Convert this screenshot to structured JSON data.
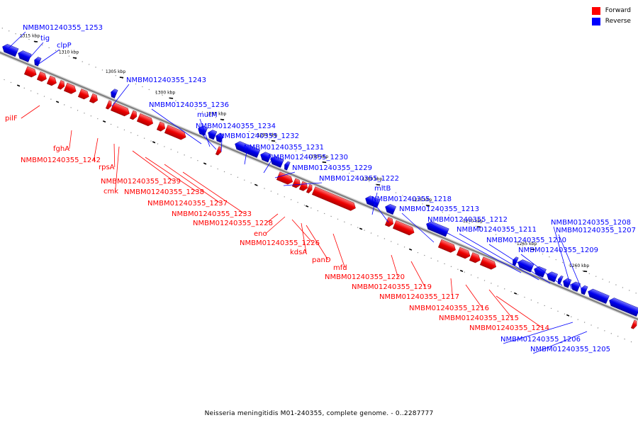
{
  "legend": {
    "forward": "Forward",
    "reverse": "Reverse"
  },
  "colors": {
    "forward": "#ff0000",
    "reverse": "#0000ff",
    "backbone": "#808080"
  },
  "caption": "Neisseria meningitidis M01-240355, complete genome. - 0..2287777",
  "ticks": [
    "1315 kbp",
    "1310 kbp",
    "1305 kbp",
    "1300 kbp",
    "1295 kbp",
    "1290 kbp",
    "1285 kbp",
    "1280 kbp",
    "1275 kbp",
    "1270 kbp",
    "1265 kbp",
    "1260 kbp"
  ],
  "genes": [
    {
      "name": "NMBM01240355_1253",
      "strand": "reverse"
    },
    {
      "name": "tig",
      "strand": "reverse"
    },
    {
      "name": "clpP",
      "strand": "reverse"
    },
    {
      "name": "NMBM01240355_1243",
      "strand": "reverse"
    },
    {
      "name": "NMBM01240355_1236",
      "strand": "reverse"
    },
    {
      "name": "mutM",
      "strand": "reverse"
    },
    {
      "name": "NMBM01240355_1234",
      "strand": "reverse"
    },
    {
      "name": "NMBM01240355_1232",
      "strand": "reverse"
    },
    {
      "name": "NMBM01240355_1231",
      "strand": "reverse"
    },
    {
      "name": "NMBM01240355_1230",
      "strand": "reverse"
    },
    {
      "name": "NMBM01240355_1229",
      "strand": "reverse"
    },
    {
      "name": "NMBM01240355_1222",
      "strand": "reverse"
    },
    {
      "name": "mltB",
      "strand": "reverse"
    },
    {
      "name": "NMBM01240355_1218",
      "strand": "reverse"
    },
    {
      "name": "NMBM01240355_1213",
      "strand": "reverse"
    },
    {
      "name": "NMBM01240355_1212",
      "strand": "reverse"
    },
    {
      "name": "NMBM01240355_1211",
      "strand": "reverse"
    },
    {
      "name": "NMBM01240355_1210",
      "strand": "reverse"
    },
    {
      "name": "NMBM01240355_1209",
      "strand": "reverse"
    },
    {
      "name": "NMBM01240355_1208",
      "strand": "reverse"
    },
    {
      "name": "NMBM01240355_1207",
      "strand": "reverse"
    },
    {
      "name": "NMBM01240355_1206",
      "strand": "reverse"
    },
    {
      "name": "NMBM01240355_1205",
      "strand": "reverse"
    },
    {
      "name": "pilF",
      "strand": "forward"
    },
    {
      "name": "fghA",
      "strand": "forward"
    },
    {
      "name": "NMBM01240355_1242",
      "strand": "forward"
    },
    {
      "name": "rpsA",
      "strand": "forward"
    },
    {
      "name": "cmk",
      "strand": "forward"
    },
    {
      "name": "NMBM01240355_1239",
      "strand": "forward"
    },
    {
      "name": "NMBM01240355_1238",
      "strand": "forward"
    },
    {
      "name": "NMBM01240355_1237",
      "strand": "forward"
    },
    {
      "name": "NMBM01240355_1233",
      "strand": "forward"
    },
    {
      "name": "NMBM01240355_1228",
      "strand": "forward"
    },
    {
      "name": "eno",
      "strand": "forward"
    },
    {
      "name": "NMBM01240355_1226",
      "strand": "forward"
    },
    {
      "name": "kdsA",
      "strand": "forward"
    },
    {
      "name": "panD",
      "strand": "forward"
    },
    {
      "name": "mfd",
      "strand": "forward"
    },
    {
      "name": "NMBM01240355_1220",
      "strand": "forward"
    },
    {
      "name": "NMBM01240355_1219",
      "strand": "forward"
    },
    {
      "name": "NMBM01240355_1217",
      "strand": "forward"
    },
    {
      "name": "NMBM01240355_1216",
      "strand": "forward"
    },
    {
      "name": "NMBM01240355_1215",
      "strand": "forward"
    },
    {
      "name": "NMBM01240355_1214",
      "strand": "forward"
    }
  ]
}
